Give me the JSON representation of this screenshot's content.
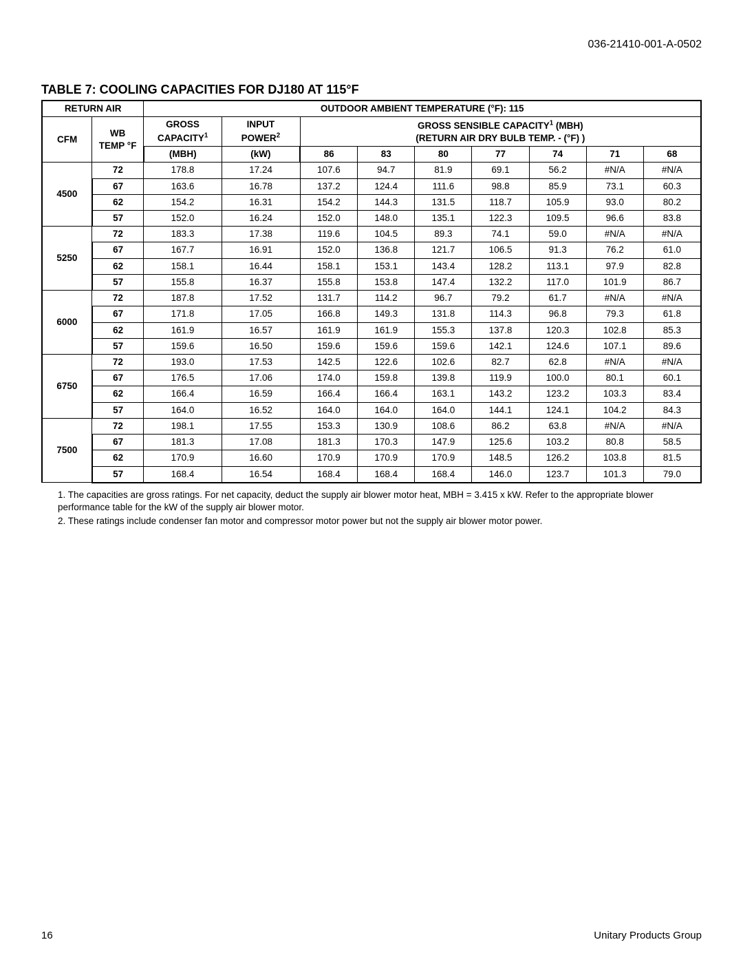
{
  "doc_number": "036-21410-001-A-0502",
  "table_title": "TABLE 7: COOLING CAPACITIES FOR DJ180 AT 115°F",
  "footer_page": "16",
  "footer_group": "Unitary Products Group",
  "headers": {
    "return_air": "RETURN AIR",
    "outdoor": "OUTDOOR AMBIENT TEMPERATURE (°F):  115",
    "cfm": "CFM",
    "wb": "WB TEMP °F",
    "gross_l1": "GROSS",
    "gross_l2_html": "CAPACITY<sup>1</sup>",
    "gross_l3": "(MBH)",
    "input_l1": "INPUT",
    "input_l2_html": "POWER<sup>2</sup>",
    "input_l3": "(kW)",
    "sens_l1_html": "GROSS SENSIBLE CAPACITY<sup>1</sup> (MBH)",
    "sens_l2": "(RETURN AIR DRY BULB TEMP. - (°F) )",
    "db_temps": [
      "86",
      "83",
      "80",
      "77",
      "74",
      "71",
      "68"
    ]
  },
  "groups": [
    {
      "cfm": "4500",
      "rows": [
        {
          "wb": "72",
          "gc": "178.8",
          "ip": "17.24",
          "db": [
            "107.6",
            "94.7",
            "81.9",
            "69.1",
            "56.2",
            "#N/A",
            "#N/A"
          ]
        },
        {
          "wb": "67",
          "gc": "163.6",
          "ip": "16.78",
          "db": [
            "137.2",
            "124.4",
            "111.6",
            "98.8",
            "85.9",
            "73.1",
            "60.3"
          ]
        },
        {
          "wb": "62",
          "gc": "154.2",
          "ip": "16.31",
          "db": [
            "154.2",
            "144.3",
            "131.5",
            "118.7",
            "105.9",
            "93.0",
            "80.2"
          ]
        },
        {
          "wb": "57",
          "gc": "152.0",
          "ip": "16.24",
          "db": [
            "152.0",
            "148.0",
            "135.1",
            "122.3",
            "109.5",
            "96.6",
            "83.8"
          ]
        }
      ]
    },
    {
      "cfm": "5250",
      "rows": [
        {
          "wb": "72",
          "gc": "183.3",
          "ip": "17.38",
          "db": [
            "119.6",
            "104.5",
            "89.3",
            "74.1",
            "59.0",
            "#N/A",
            "#N/A"
          ]
        },
        {
          "wb": "67",
          "gc": "167.7",
          "ip": "16.91",
          "db": [
            "152.0",
            "136.8",
            "121.7",
            "106.5",
            "91.3",
            "76.2",
            "61.0"
          ]
        },
        {
          "wb": "62",
          "gc": "158.1",
          "ip": "16.44",
          "db": [
            "158.1",
            "153.1",
            "143.4",
            "128.2",
            "113.1",
            "97.9",
            "82.8"
          ]
        },
        {
          "wb": "57",
          "gc": "155.8",
          "ip": "16.37",
          "db": [
            "155.8",
            "153.8",
            "147.4",
            "132.2",
            "117.0",
            "101.9",
            "86.7"
          ]
        }
      ]
    },
    {
      "cfm": "6000",
      "rows": [
        {
          "wb": "72",
          "gc": "187.8",
          "ip": "17.52",
          "db": [
            "131.7",
            "114.2",
            "96.7",
            "79.2",
            "61.7",
            "#N/A",
            "#N/A"
          ]
        },
        {
          "wb": "67",
          "gc": "171.8",
          "ip": "17.05",
          "db": [
            "166.8",
            "149.3",
            "131.8",
            "114.3",
            "96.8",
            "79.3",
            "61.8"
          ]
        },
        {
          "wb": "62",
          "gc": "161.9",
          "ip": "16.57",
          "db": [
            "161.9",
            "161.9",
            "155.3",
            "137.8",
            "120.3",
            "102.8",
            "85.3"
          ]
        },
        {
          "wb": "57",
          "gc": "159.6",
          "ip": "16.50",
          "db": [
            "159.6",
            "159.6",
            "159.6",
            "142.1",
            "124.6",
            "107.1",
            "89.6"
          ]
        }
      ]
    },
    {
      "cfm": "6750",
      "rows": [
        {
          "wb": "72",
          "gc": "193.0",
          "ip": "17.53",
          "db": [
            "142.5",
            "122.6",
            "102.6",
            "82.7",
            "62.8",
            "#N/A",
            "#N/A"
          ]
        },
        {
          "wb": "67",
          "gc": "176.5",
          "ip": "17.06",
          "db": [
            "174.0",
            "159.8",
            "139.8",
            "119.9",
            "100.0",
            "80.1",
            "60.1"
          ]
        },
        {
          "wb": "62",
          "gc": "166.4",
          "ip": "16.59",
          "db": [
            "166.4",
            "166.4",
            "163.1",
            "143.2",
            "123.2",
            "103.3",
            "83.4"
          ]
        },
        {
          "wb": "57",
          "gc": "164.0",
          "ip": "16.52",
          "db": [
            "164.0",
            "164.0",
            "164.0",
            "144.1",
            "124.1",
            "104.2",
            "84.3"
          ]
        }
      ]
    },
    {
      "cfm": "7500",
      "rows": [
        {
          "wb": "72",
          "gc": "198.1",
          "ip": "17.55",
          "db": [
            "153.3",
            "130.9",
            "108.6",
            "86.2",
            "63.8",
            "#N/A",
            "#N/A"
          ]
        },
        {
          "wb": "67",
          "gc": "181.3",
          "ip": "17.08",
          "db": [
            "181.3",
            "170.3",
            "147.9",
            "125.6",
            "103.2",
            "80.8",
            "58.5"
          ]
        },
        {
          "wb": "62",
          "gc": "170.9",
          "ip": "16.60",
          "db": [
            "170.9",
            "170.9",
            "170.9",
            "148.5",
            "126.2",
            "103.8",
            "81.5"
          ]
        },
        {
          "wb": "57",
          "gc": "168.4",
          "ip": "16.54",
          "db": [
            "168.4",
            "168.4",
            "168.4",
            "146.0",
            "123.7",
            "101.3",
            "79.0"
          ]
        }
      ]
    }
  ],
  "notes": {
    "n1": "1.  The capacities are gross ratings. For net capacity, deduct the supply air blower motor heat, MBH = 3.415 x kW. Refer to the appropriate blower performance table for the kW of the supply air blower motor.",
    "n2": "2.  These ratings include condenser fan motor and compressor motor power but not the supply air blower motor power."
  }
}
